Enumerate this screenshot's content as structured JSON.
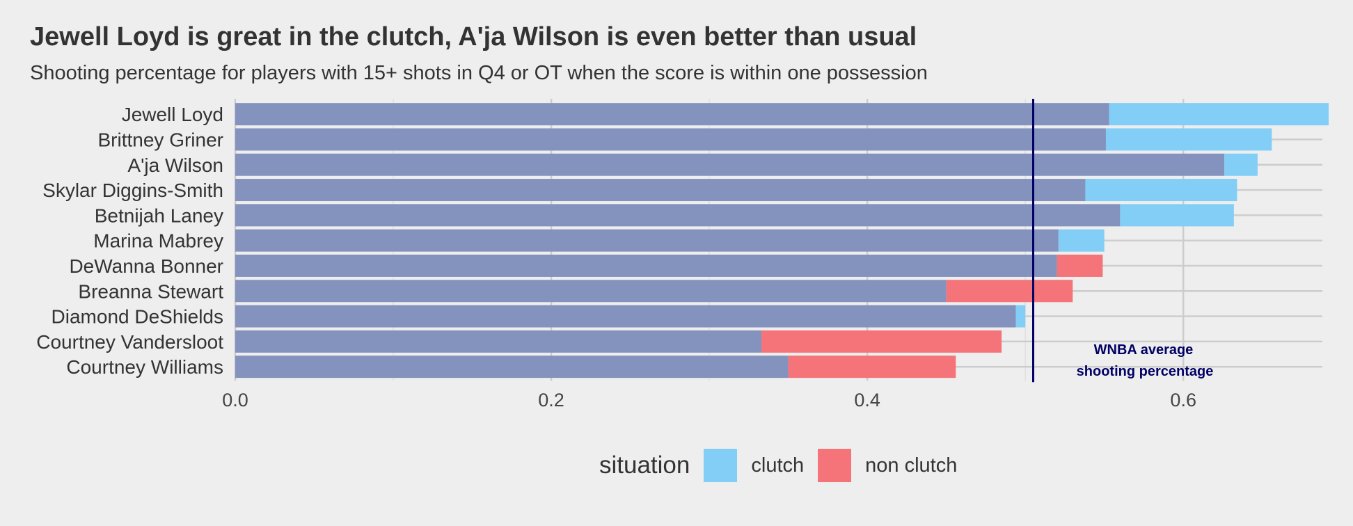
{
  "chart_data": {
    "type": "bar",
    "title": "Jewell Loyd is great in the clutch, A'ja Wilson is even better than usual",
    "subtitle": "Shooting percentage for players with 15+ shots in Q4 or OT when the score is within one possession",
    "categories": [
      "Jewell Loyd",
      "Brittney Griner",
      "A'ja Wilson",
      "Skylar Diggins-Smith",
      "Betnijah Laney",
      "Marina Mabrey",
      "DeWanna Bonner",
      "Breanna Stewart",
      "Diamond DeShields",
      "Courtney Vandersloot",
      "Courtney Williams"
    ],
    "series": [
      {
        "name": "clutch",
        "values": [
          0.692,
          0.656,
          0.647,
          0.634,
          0.632,
          0.55,
          0.52,
          0.45,
          0.5,
          0.333,
          0.35
        ]
      },
      {
        "name": "non clutch",
        "values": [
          0.553,
          0.551,
          0.626,
          0.538,
          0.56,
          0.521,
          0.549,
          0.53,
          0.494,
          0.485,
          0.456
        ]
      }
    ],
    "xlim": [
      0,
      0.688
    ],
    "x_ticks": [
      "0.0",
      "0.2",
      "0.4",
      "0.6"
    ],
    "x_tick_values": [
      0,
      0.2,
      0.4,
      0.6
    ],
    "reference_line": {
      "value": 0.505,
      "label_line1": "WNBA average",
      "label_line2": "shooting percentage",
      "color": "#000066"
    },
    "legend": {
      "title": "situation",
      "placement": "bottom",
      "entries": [
        {
          "label": "clutch",
          "color": "#82cef6"
        },
        {
          "label": "non clutch",
          "color": "#f47479"
        }
      ]
    },
    "overlap_color": "#8493be",
    "grid": true
  }
}
